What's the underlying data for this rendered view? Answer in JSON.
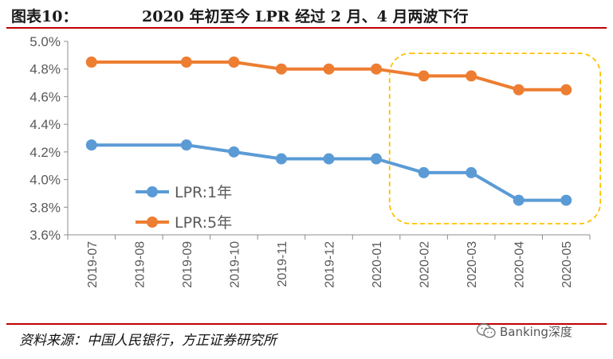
{
  "header": {
    "label": "图表10：",
    "title": "2020 年初至今 LPR 经过 2 月、4 月两波下行"
  },
  "footer": {
    "source": "资料来源：中国人民银行，方正证券研究所",
    "watermark": "Banking深度"
  },
  "colors": {
    "series_1y": "#5b9bd5",
    "series_5y": "#ed7d31",
    "highlight": "#ffc000",
    "rule": "#c00000"
  },
  "chart_data": {
    "type": "line",
    "title": "2020 年初至今 LPR 经过 2 月、4 月两波下行",
    "xlabel": "",
    "ylabel": "",
    "categories": [
      "2019-07",
      "2019-08",
      "2019-09",
      "2019-10",
      "2019-11",
      "2019-12",
      "2020-01",
      "2020-02",
      "2020-03",
      "2020-04",
      "2020-05"
    ],
    "series": [
      {
        "name": "LPR:1年",
        "values": [
          4.25,
          null,
          4.25,
          4.2,
          4.15,
          4.15,
          4.15,
          4.05,
          4.05,
          3.85,
          3.85
        ]
      },
      {
        "name": "LPR:5年",
        "values": [
          4.85,
          null,
          4.85,
          4.85,
          4.8,
          4.8,
          4.8,
          4.75,
          4.75,
          4.65,
          4.65
        ]
      }
    ],
    "ylim": [
      3.6,
      5.0
    ],
    "yticks": [
      3.6,
      3.8,
      4.0,
      4.2,
      4.4,
      4.6,
      4.8,
      5.0
    ],
    "ytick_labels": [
      "3.6%",
      "3.8%",
      "4.0%",
      "4.2%",
      "4.4%",
      "4.6%",
      "4.8%",
      "5.0%"
    ],
    "legend_position": "lower-left",
    "annotation": "dashed highlight box over 2020-02 to 2020-05"
  }
}
